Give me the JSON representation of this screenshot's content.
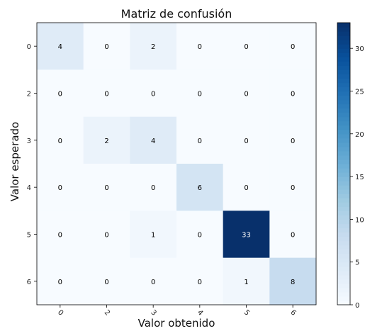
{
  "chart_data": {
    "type": "heatmap",
    "title": "Matriz de confusión",
    "xlabel": "Valor obtenido",
    "ylabel": "Valor esperado",
    "x_categories": [
      "0",
      "2",
      "3",
      "4",
      "5",
      "6"
    ],
    "y_categories": [
      "0",
      "2",
      "3",
      "4",
      "5",
      "6"
    ],
    "values": [
      [
        4,
        0,
        2,
        0,
        0,
        0
      ],
      [
        0,
        0,
        0,
        0,
        0,
        0
      ],
      [
        0,
        2,
        4,
        0,
        0,
        0
      ],
      [
        0,
        0,
        0,
        6,
        0,
        0
      ],
      [
        0,
        0,
        1,
        0,
        33,
        0
      ],
      [
        0,
        0,
        0,
        0,
        1,
        8
      ]
    ],
    "colormap": "Blues",
    "colorbar": {
      "range": [
        0,
        33
      ],
      "ticks": [
        "0",
        "5",
        "10",
        "15",
        "20",
        "25",
        "30"
      ]
    }
  }
}
